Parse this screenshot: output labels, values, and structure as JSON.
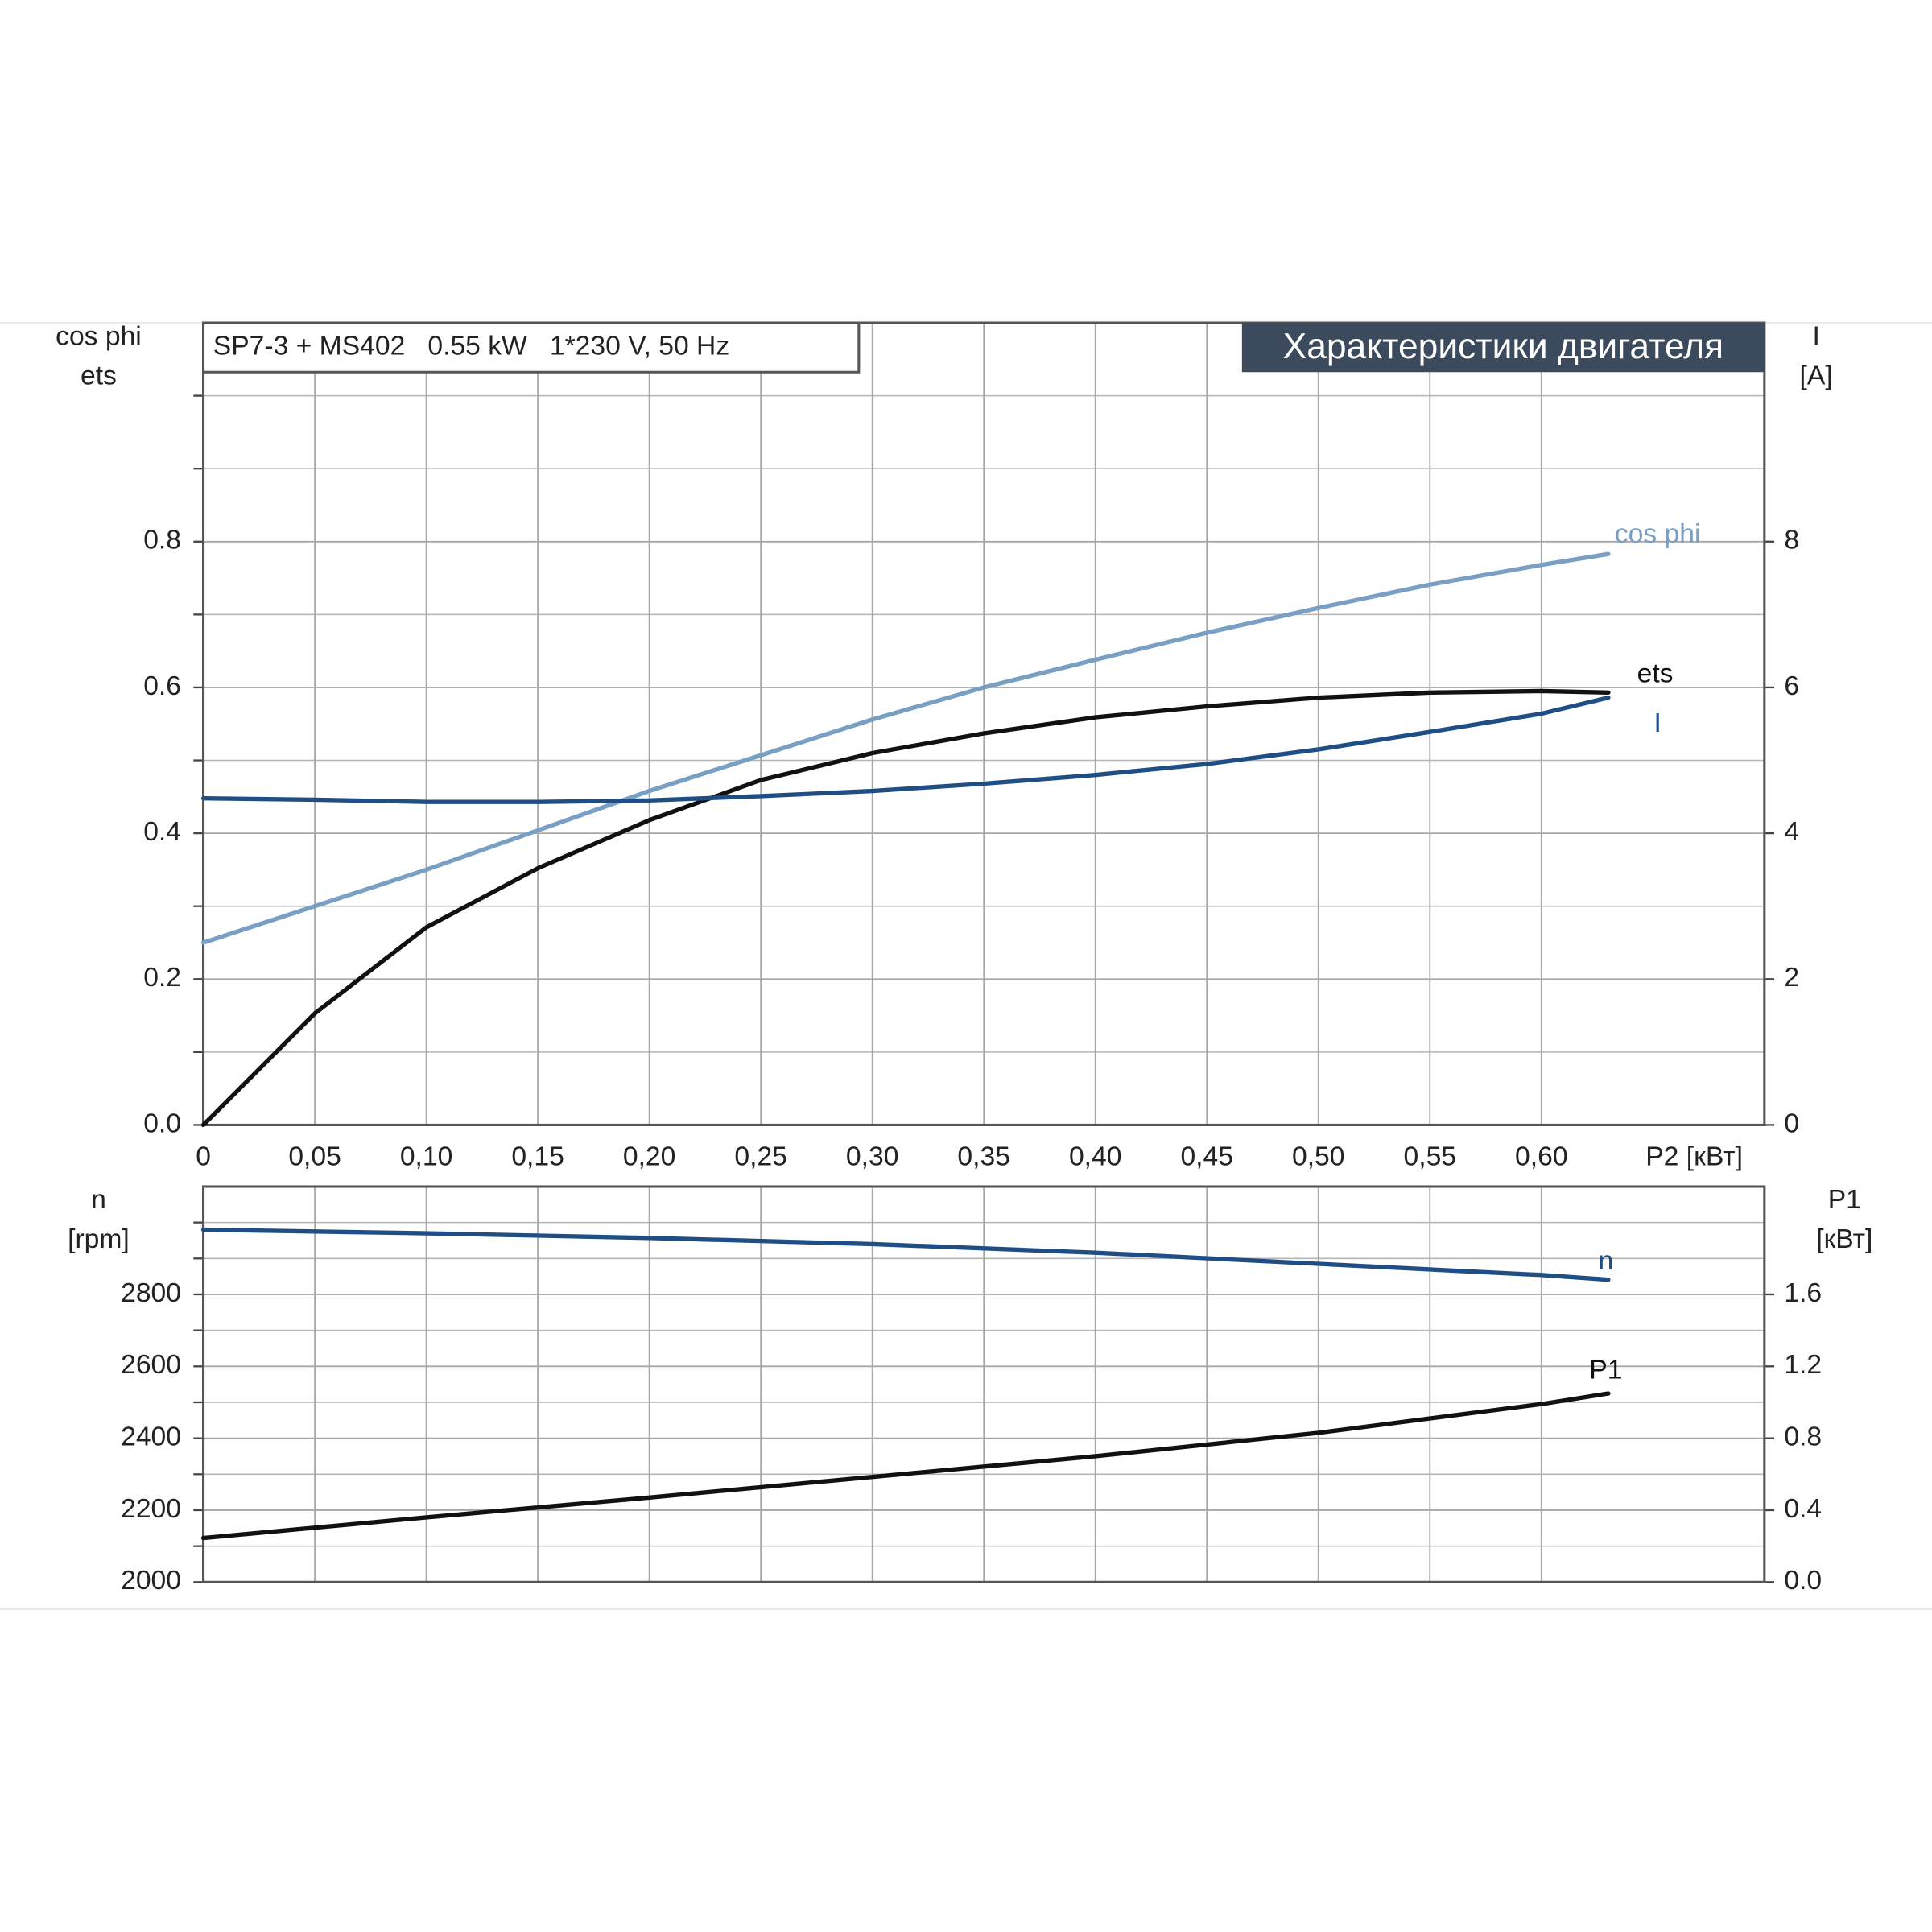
{
  "chart_data": [
    {
      "type": "line",
      "title": "SP7-3 + MS402   0.55 kW   1*230 V, 50 Hz",
      "subtitle": "Характеристики двигателя",
      "xlabel": "P2 [кВт]",
      "ylabel": [
        "cos phi",
        "ets"
      ],
      "y2label": [
        "I",
        "[A]"
      ],
      "xlim": [
        0,
        0.7
      ],
      "xticks": [
        0,
        {
          "value": 0.05,
          "label": "0,05"
        },
        {
          "value": 0.1,
          "label": "0,10"
        },
        {
          "value": 0.15,
          "label": "0,15"
        },
        {
          "value": 0.2,
          "label": "0,20"
        },
        {
          "value": 0.25,
          "label": "0,25"
        },
        {
          "value": 0.3,
          "label": "0,30"
        },
        {
          "value": 0.35,
          "label": "0,35"
        },
        {
          "value": 0.4,
          "label": "0,40"
        },
        {
          "value": 0.45,
          "label": "0,45"
        },
        {
          "value": 0.5,
          "label": "0,50"
        },
        {
          "value": 0.55,
          "label": "0,55"
        },
        {
          "value": 0.6,
          "label": "0,60"
        }
      ],
      "ylim": [
        0,
        1.1
      ],
      "yticks": [
        {
          "value": 0,
          "label": "0.0"
        },
        0.2,
        0.4,
        0.6,
        0.8
      ],
      "minor_yticks": [
        0.1,
        0.3,
        0.5,
        0.7,
        0.9,
        1.0
      ],
      "y2lim": [
        0,
        11
      ],
      "y2ticks": [
        0,
        2,
        4,
        6,
        8
      ],
      "grid": true,
      "x": [
        0,
        0.05,
        0.1,
        0.15,
        0.2,
        0.25,
        0.3,
        0.35,
        0.4,
        0.45,
        0.5,
        0.55,
        0.6,
        0.63
      ],
      "series": [
        {
          "name": "cos phi",
          "color": "#7a9fc5",
          "values": [
            0.25,
            0.3,
            0.35,
            0.404,
            0.458,
            0.507,
            0.556,
            0.6,
            0.638,
            0.675,
            0.709,
            0.741,
            0.768,
            0.783
          ]
        },
        {
          "name": "ets",
          "color": "#111111",
          "values": [
            0,
            0.153,
            0.271,
            0.352,
            0.418,
            0.473,
            0.51,
            0.537,
            0.559,
            0.574,
            0.586,
            0.593,
            0.595,
            0.593
          ]
        },
        {
          "name": "I",
          "color": "#1f4e85",
          "axis": "y2",
          "values": [
            4.48,
            4.46,
            4.43,
            4.43,
            4.45,
            4.51,
            4.58,
            4.68,
            4.8,
            4.95,
            5.15,
            5.39,
            5.64,
            5.86
          ]
        }
      ]
    },
    {
      "type": "line",
      "ylabel": [
        "n",
        "[rpm]"
      ],
      "y2label": [
        "P1",
        "[кВт]"
      ],
      "xlim": [
        0,
        0.7
      ],
      "ylim": [
        2000,
        3100
      ],
      "yticks": [
        2000,
        2200,
        2400,
        2600,
        2800
      ],
      "minor_yticks": [
        2100,
        2300,
        2500,
        2700,
        2900,
        3000
      ],
      "y2lim": [
        0,
        2.2
      ],
      "y2ticks": [
        {
          "value": 0,
          "label": "0.0"
        },
        0.4,
        0.8,
        1.2,
        1.6
      ],
      "grid": true,
      "x": [
        0,
        0.1,
        0.2,
        0.3,
        0.4,
        0.5,
        0.6,
        0.63
      ],
      "series": [
        {
          "name": "n",
          "color": "#1f4e85",
          "values": [
            2980,
            2970,
            2957,
            2940,
            2916,
            2885,
            2854,
            2841
          ]
        },
        {
          "name": "P1",
          "color": "#111111",
          "axis": "y2",
          "values": [
            0.245,
            0.36,
            0.47,
            0.585,
            0.7,
            0.83,
            0.99,
            1.049
          ]
        }
      ]
    }
  ]
}
